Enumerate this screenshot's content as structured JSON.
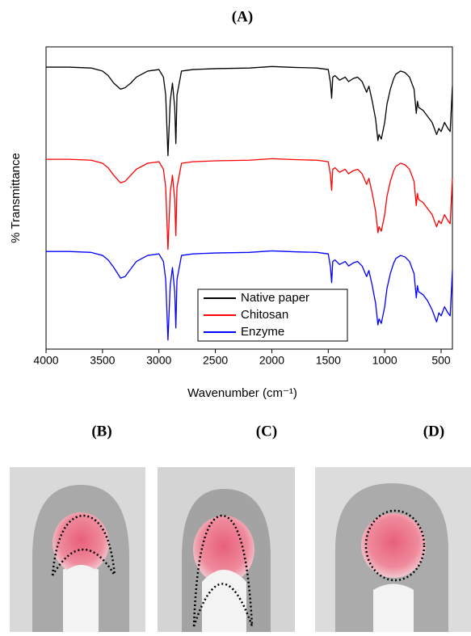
{
  "chart_data": {
    "type": "line",
    "title": "(A)",
    "xlabel": "Wavenumber (cm⁻¹)",
    "ylabel": "% Transmittance",
    "xlim": [
      4000,
      400
    ],
    "ylim": [
      0,
      100
    ],
    "xticks": [
      4000,
      3500,
      3000,
      2500,
      2000,
      1500,
      1000,
      500
    ],
    "legend": "lower right",
    "x": [
      4000,
      3800,
      3600,
      3500,
      3450,
      3400,
      3340,
      3300,
      3250,
      3200,
      3100,
      3000,
      2960,
      2940,
      2920,
      2900,
      2880,
      2860,
      2850,
      2840,
      2800,
      2700,
      2500,
      2200,
      2000,
      1800,
      1600,
      1500,
      1480,
      1470,
      1460,
      1440,
      1400,
      1350,
      1320,
      1280,
      1240,
      1200,
      1160,
      1140,
      1110,
      1080,
      1060,
      1050,
      1030,
      1000,
      980,
      950,
      920,
      900,
      860,
      820,
      780,
      740,
      720,
      710,
      700,
      660,
      620,
      580,
      560,
      540,
      520,
      500,
      470,
      440,
      420,
      400
    ],
    "series": [
      {
        "name": "Native paper",
        "color": "#000000",
        "values": [
          93.3,
          93.3,
          93,
          92,
          90.5,
          88,
          86,
          86.5,
          88,
          90,
          92,
          92.5,
          90,
          84,
          64,
          82,
          88,
          80,
          68,
          84,
          92,
          92.5,
          92.8,
          93,
          93.5,
          93.2,
          93,
          92.5,
          88,
          83,
          90,
          90.5,
          89,
          90,
          88.5,
          89.5,
          90,
          88.5,
          85,
          87,
          82,
          76,
          69,
          71,
          69.5,
          75,
          81,
          86,
          89.5,
          91,
          92,
          91.5,
          90,
          86,
          78,
          82,
          80,
          79,
          77,
          75,
          73,
          71,
          73,
          72,
          75,
          73,
          72,
          87
        ]
      },
      {
        "name": "Chitosan",
        "color": "#ff0000",
        "values": [
          62.8,
          62.8,
          62.5,
          61.5,
          60,
          57.5,
          55,
          55.5,
          57.5,
          59.5,
          61.5,
          62,
          59.5,
          53.5,
          33,
          51.5,
          57.5,
          49.5,
          37.5,
          53.5,
          61.5,
          62,
          62.3,
          62.5,
          63,
          62.7,
          62.5,
          62,
          57.5,
          52.5,
          59.5,
          60,
          58.5,
          59.5,
          58,
          59,
          59.5,
          58,
          54.5,
          56.5,
          51.5,
          45.5,
          38.5,
          40.5,
          39,
          44.5,
          50.5,
          55.5,
          59,
          60.5,
          61.5,
          61,
          59.5,
          55.5,
          47.5,
          51.5,
          49.5,
          48.5,
          46.5,
          44.5,
          42.5,
          40.5,
          42.5,
          41.5,
          44.5,
          42.5,
          41.5,
          56.5
        ]
      },
      {
        "name": "Enzyme",
        "color": "#0000ff",
        "values": [
          32.3,
          32.3,
          32,
          31,
          29.5,
          27,
          23.5,
          24,
          26.5,
          29,
          31,
          31.5,
          29,
          23,
          3,
          21,
          27,
          19,
          7,
          23,
          31,
          31.5,
          31.8,
          32,
          32.5,
          32.2,
          32,
          31.5,
          27,
          22,
          29,
          29.5,
          28,
          29,
          27.5,
          28.5,
          29,
          27.5,
          24,
          26,
          21,
          15,
          8,
          10,
          8.5,
          14,
          20,
          25,
          28.5,
          30,
          31,
          30.5,
          29,
          25,
          17,
          21,
          19,
          18,
          16,
          13,
          11,
          9,
          12,
          11,
          14,
          12,
          11,
          26
        ]
      }
    ]
  },
  "panels": [
    {
      "label": "(B)"
    },
    {
      "label": "(C)"
    },
    {
      "label": "(D)"
    }
  ]
}
